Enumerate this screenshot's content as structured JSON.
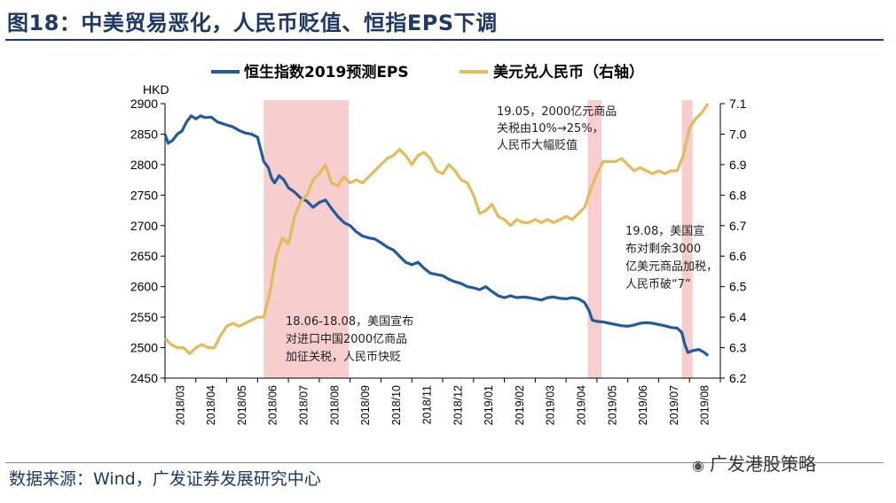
{
  "figure": {
    "title": "图18：中美贸易恶化，人民币贬值、恒指EPS下调",
    "source": "数据来源：Wind，广发证券发展研究中心",
    "watermark": "广发港股策略",
    "watermark_icon": "wechat-icon"
  },
  "chart_data": {
    "type": "line",
    "left_unit": "HKD",
    "ylim_left": [
      2450,
      2900
    ],
    "ylim_right": [
      6.2,
      7.1
    ],
    "yticks_left": [
      "2900",
      "2850",
      "2800",
      "2750",
      "2700",
      "2650",
      "2600",
      "2550",
      "2500",
      "2450"
    ],
    "yticks_right": [
      "7.1",
      "7.0",
      "6.9",
      "6.8",
      "6.7",
      "6.6",
      "6.5",
      "6.4",
      "6.3",
      "6.2"
    ],
    "xticks": [
      "2018/03",
      "2018/04",
      "2018/05",
      "2018/06",
      "2018/07",
      "2018/08",
      "2018/09",
      "2018/10",
      "2018/11",
      "2018/12",
      "2019/01",
      "2019/02",
      "2019/03",
      "2019/04",
      "2019/05",
      "2019/06",
      "2019/07",
      "2019/08"
    ],
    "legend_placement": "top-center",
    "series": [
      {
        "name": "恒生指数2019预测EPS",
        "axis": "left",
        "color": "#1f5c99",
        "points": [
          [
            0.0,
            2850
          ],
          [
            0.1,
            2835
          ],
          [
            0.25,
            2840
          ],
          [
            0.4,
            2850
          ],
          [
            0.55,
            2855
          ],
          [
            0.7,
            2870
          ],
          [
            0.85,
            2880
          ],
          [
            1.0,
            2875
          ],
          [
            1.15,
            2880
          ],
          [
            1.3,
            2877
          ],
          [
            1.5,
            2878
          ],
          [
            1.7,
            2870
          ],
          [
            2.0,
            2865
          ],
          [
            2.2,
            2862
          ],
          [
            2.4,
            2856
          ],
          [
            2.6,
            2852
          ],
          [
            2.8,
            2850
          ],
          [
            3.0,
            2845
          ],
          [
            3.2,
            2805
          ],
          [
            3.35,
            2795
          ],
          [
            3.45,
            2778
          ],
          [
            3.55,
            2770
          ],
          [
            3.7,
            2782
          ],
          [
            3.85,
            2775
          ],
          [
            4.0,
            2762
          ],
          [
            4.2,
            2755
          ],
          [
            4.4,
            2745
          ],
          [
            4.6,
            2740
          ],
          [
            4.8,
            2730
          ],
          [
            5.0,
            2738
          ],
          [
            5.2,
            2742
          ],
          [
            5.4,
            2728
          ],
          [
            5.6,
            2715
          ],
          [
            5.8,
            2705
          ],
          [
            6.0,
            2700
          ],
          [
            6.2,
            2690
          ],
          [
            6.4,
            2683
          ],
          [
            6.6,
            2680
          ],
          [
            6.8,
            2678
          ],
          [
            7.0,
            2672
          ],
          [
            7.2,
            2665
          ],
          [
            7.4,
            2660
          ],
          [
            7.6,
            2650
          ],
          [
            7.8,
            2640
          ],
          [
            8.0,
            2636
          ],
          [
            8.2,
            2640
          ],
          [
            8.4,
            2630
          ],
          [
            8.6,
            2622
          ],
          [
            8.8,
            2620
          ],
          [
            9.0,
            2618
          ],
          [
            9.2,
            2612
          ],
          [
            9.4,
            2608
          ],
          [
            9.6,
            2605
          ],
          [
            9.8,
            2600
          ],
          [
            10.0,
            2598
          ],
          [
            10.2,
            2595
          ],
          [
            10.4,
            2600
          ],
          [
            10.6,
            2592
          ],
          [
            10.8,
            2585
          ],
          [
            11.0,
            2582
          ],
          [
            11.2,
            2585
          ],
          [
            11.4,
            2582
          ],
          [
            11.6,
            2583
          ],
          [
            11.8,
            2582
          ],
          [
            12.0,
            2580
          ],
          [
            12.2,
            2578
          ],
          [
            12.4,
            2582
          ],
          [
            12.6,
            2583
          ],
          [
            12.8,
            2581
          ],
          [
            13.0,
            2580
          ],
          [
            13.2,
            2582
          ],
          [
            13.4,
            2580
          ],
          [
            13.6,
            2574
          ],
          [
            13.75,
            2560
          ],
          [
            13.85,
            2545
          ],
          [
            14.0,
            2543
          ],
          [
            14.2,
            2542
          ],
          [
            14.4,
            2540
          ],
          [
            14.6,
            2538
          ],
          [
            14.8,
            2536
          ],
          [
            15.0,
            2535
          ],
          [
            15.2,
            2537
          ],
          [
            15.4,
            2540
          ],
          [
            15.6,
            2541
          ],
          [
            15.8,
            2540
          ],
          [
            16.0,
            2538
          ],
          [
            16.2,
            2536
          ],
          [
            16.4,
            2533
          ],
          [
            16.6,
            2532
          ],
          [
            16.75,
            2525
          ],
          [
            16.85,
            2505
          ],
          [
            16.95,
            2492
          ],
          [
            17.1,
            2495
          ],
          [
            17.3,
            2497
          ],
          [
            17.45,
            2493
          ],
          [
            17.6,
            2487
          ]
        ]
      },
      {
        "name": "美元兑人民币（右轴）",
        "axis": "right",
        "color": "#e2bb5a",
        "points": [
          [
            0.0,
            6.33
          ],
          [
            0.2,
            6.31
          ],
          [
            0.4,
            6.3
          ],
          [
            0.6,
            6.3
          ],
          [
            0.8,
            6.28
          ],
          [
            1.0,
            6.3
          ],
          [
            1.2,
            6.31
          ],
          [
            1.4,
            6.3
          ],
          [
            1.6,
            6.3
          ],
          [
            1.8,
            6.34
          ],
          [
            2.0,
            6.37
          ],
          [
            2.2,
            6.38
          ],
          [
            2.4,
            6.37
          ],
          [
            2.6,
            6.38
          ],
          [
            2.8,
            6.39
          ],
          [
            3.0,
            6.4
          ],
          [
            3.2,
            6.4
          ],
          [
            3.4,
            6.48
          ],
          [
            3.6,
            6.6
          ],
          [
            3.8,
            6.66
          ],
          [
            4.0,
            6.64
          ],
          [
            4.2,
            6.73
          ],
          [
            4.4,
            6.78
          ],
          [
            4.6,
            6.8
          ],
          [
            4.8,
            6.85
          ],
          [
            5.0,
            6.87
          ],
          [
            5.2,
            6.9
          ],
          [
            5.4,
            6.84
          ],
          [
            5.6,
            6.83
          ],
          [
            5.8,
            6.86
          ],
          [
            6.0,
            6.84
          ],
          [
            6.2,
            6.85
          ],
          [
            6.4,
            6.84
          ],
          [
            6.6,
            6.86
          ],
          [
            6.8,
            6.88
          ],
          [
            7.0,
            6.9
          ],
          [
            7.2,
            6.92
          ],
          [
            7.4,
            6.93
          ],
          [
            7.6,
            6.95
          ],
          [
            7.8,
            6.93
          ],
          [
            8.0,
            6.9
          ],
          [
            8.2,
            6.93
          ],
          [
            8.4,
            6.94
          ],
          [
            8.6,
            6.92
          ],
          [
            8.8,
            6.88
          ],
          [
            9.0,
            6.87
          ],
          [
            9.2,
            6.9
          ],
          [
            9.4,
            6.88
          ],
          [
            9.6,
            6.85
          ],
          [
            9.8,
            6.84
          ],
          [
            10.0,
            6.8
          ],
          [
            10.2,
            6.74
          ],
          [
            10.4,
            6.75
          ],
          [
            10.6,
            6.77
          ],
          [
            10.8,
            6.73
          ],
          [
            11.0,
            6.72
          ],
          [
            11.2,
            6.7
          ],
          [
            11.4,
            6.72
          ],
          [
            11.6,
            6.71
          ],
          [
            11.8,
            6.71
          ],
          [
            12.0,
            6.72
          ],
          [
            12.2,
            6.71
          ],
          [
            12.4,
            6.72
          ],
          [
            12.6,
            6.71
          ],
          [
            12.8,
            6.72
          ],
          [
            13.0,
            6.73
          ],
          [
            13.2,
            6.72
          ],
          [
            13.4,
            6.74
          ],
          [
            13.6,
            6.76
          ],
          [
            13.8,
            6.82
          ],
          [
            14.0,
            6.87
          ],
          [
            14.2,
            6.91
          ],
          [
            14.4,
            6.91
          ],
          [
            14.6,
            6.91
          ],
          [
            14.8,
            6.92
          ],
          [
            15.0,
            6.9
          ],
          [
            15.2,
            6.88
          ],
          [
            15.4,
            6.89
          ],
          [
            15.6,
            6.88
          ],
          [
            15.8,
            6.87
          ],
          [
            16.0,
            6.88
          ],
          [
            16.2,
            6.87
          ],
          [
            16.4,
            6.88
          ],
          [
            16.6,
            6.88
          ],
          [
            16.8,
            6.93
          ],
          [
            17.0,
            7.02
          ],
          [
            17.2,
            7.05
          ],
          [
            17.4,
            7.07
          ],
          [
            17.6,
            7.1
          ]
        ]
      }
    ],
    "shaded_periods": [
      {
        "from": 3.2,
        "to": 5.95
      },
      {
        "from": 13.7,
        "to": 14.15
      },
      {
        "from": 16.75,
        "to": 17.1
      }
    ],
    "annotations": [
      {
        "lines": [
          "19.05，2000亿元商品",
          "关税由10%→25%，",
          "人民币大幅贬值"
        ]
      },
      {
        "lines": [
          "19.08，美国宣",
          "布对剩余3000",
          "亿美元商品加税，",
          "人民币破“7”"
        ]
      },
      {
        "lines": [
          "18.06-18.08，美国宣布",
          "对进口中国2000亿商品",
          "加征关税，人民币快贬"
        ]
      }
    ],
    "colors": {
      "shade": "#f7c4c6",
      "axis": "#000000"
    }
  }
}
